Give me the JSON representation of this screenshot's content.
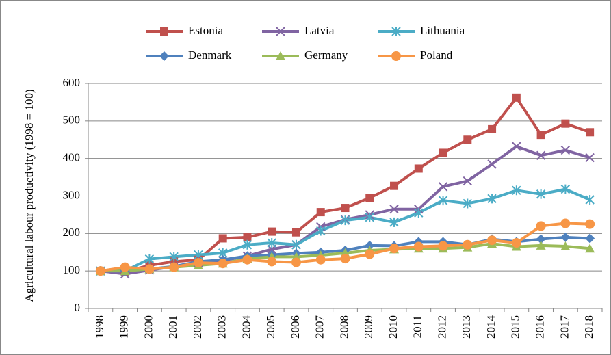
{
  "chart_data": {
    "type": "line",
    "ylabel": "Agricultural labour productivity (1998 = 100)",
    "categories": [
      "1998",
      "1999",
      "2000",
      "2001",
      "2002",
      "2003",
      "2004",
      "2005",
      "2006",
      "2007",
      "2008",
      "2009",
      "2010",
      "2011",
      "2012",
      "2013",
      "2014",
      "2015",
      "2016",
      "2017",
      "2018"
    ],
    "ylim": [
      0,
      600
    ],
    "yticks": [
      0,
      100,
      200,
      300,
      400,
      500,
      600
    ],
    "grid": true,
    "legend": "top",
    "series": [
      {
        "name": "Estonia",
        "color": "#c0504d",
        "marker": "square",
        "values": [
          100,
          98,
          115,
          125,
          130,
          187,
          190,
          205,
          203,
          257,
          268,
          295,
          327,
          373,
          415,
          450,
          478,
          562,
          463,
          493,
          470
        ]
      },
      {
        "name": "Latvia",
        "color": "#8064a2",
        "marker": "x",
        "values": [
          100,
          92,
          102,
          112,
          122,
          128,
          140,
          158,
          170,
          218,
          237,
          250,
          265,
          265,
          325,
          340,
          385,
          432,
          408,
          422,
          402
        ]
      },
      {
        "name": "Lithuania",
        "color": "#4bacc6",
        "marker": "star",
        "values": [
          100,
          100,
          132,
          138,
          143,
          148,
          170,
          175,
          170,
          207,
          235,
          243,
          230,
          255,
          288,
          280,
          293,
          315,
          305,
          318,
          290
        ]
      },
      {
        "name": "Denmark",
        "color": "#4f81bd",
        "marker": "diamond",
        "values": [
          100,
          100,
          105,
          112,
          125,
          130,
          140,
          143,
          147,
          150,
          155,
          168,
          167,
          178,
          178,
          170,
          185,
          178,
          185,
          190,
          187
        ]
      },
      {
        "name": "Germany",
        "color": "#9bbb59",
        "marker": "triangle",
        "values": [
          100,
          100,
          105,
          110,
          115,
          120,
          133,
          138,
          138,
          142,
          148,
          155,
          158,
          160,
          160,
          163,
          173,
          165,
          168,
          166,
          160
        ]
      },
      {
        "name": "Poland",
        "color": "#f79646",
        "marker": "circle",
        "values": [
          100,
          110,
          105,
          110,
          122,
          120,
          130,
          125,
          123,
          130,
          133,
          145,
          160,
          165,
          167,
          170,
          182,
          175,
          220,
          227,
          225
        ]
      }
    ]
  }
}
